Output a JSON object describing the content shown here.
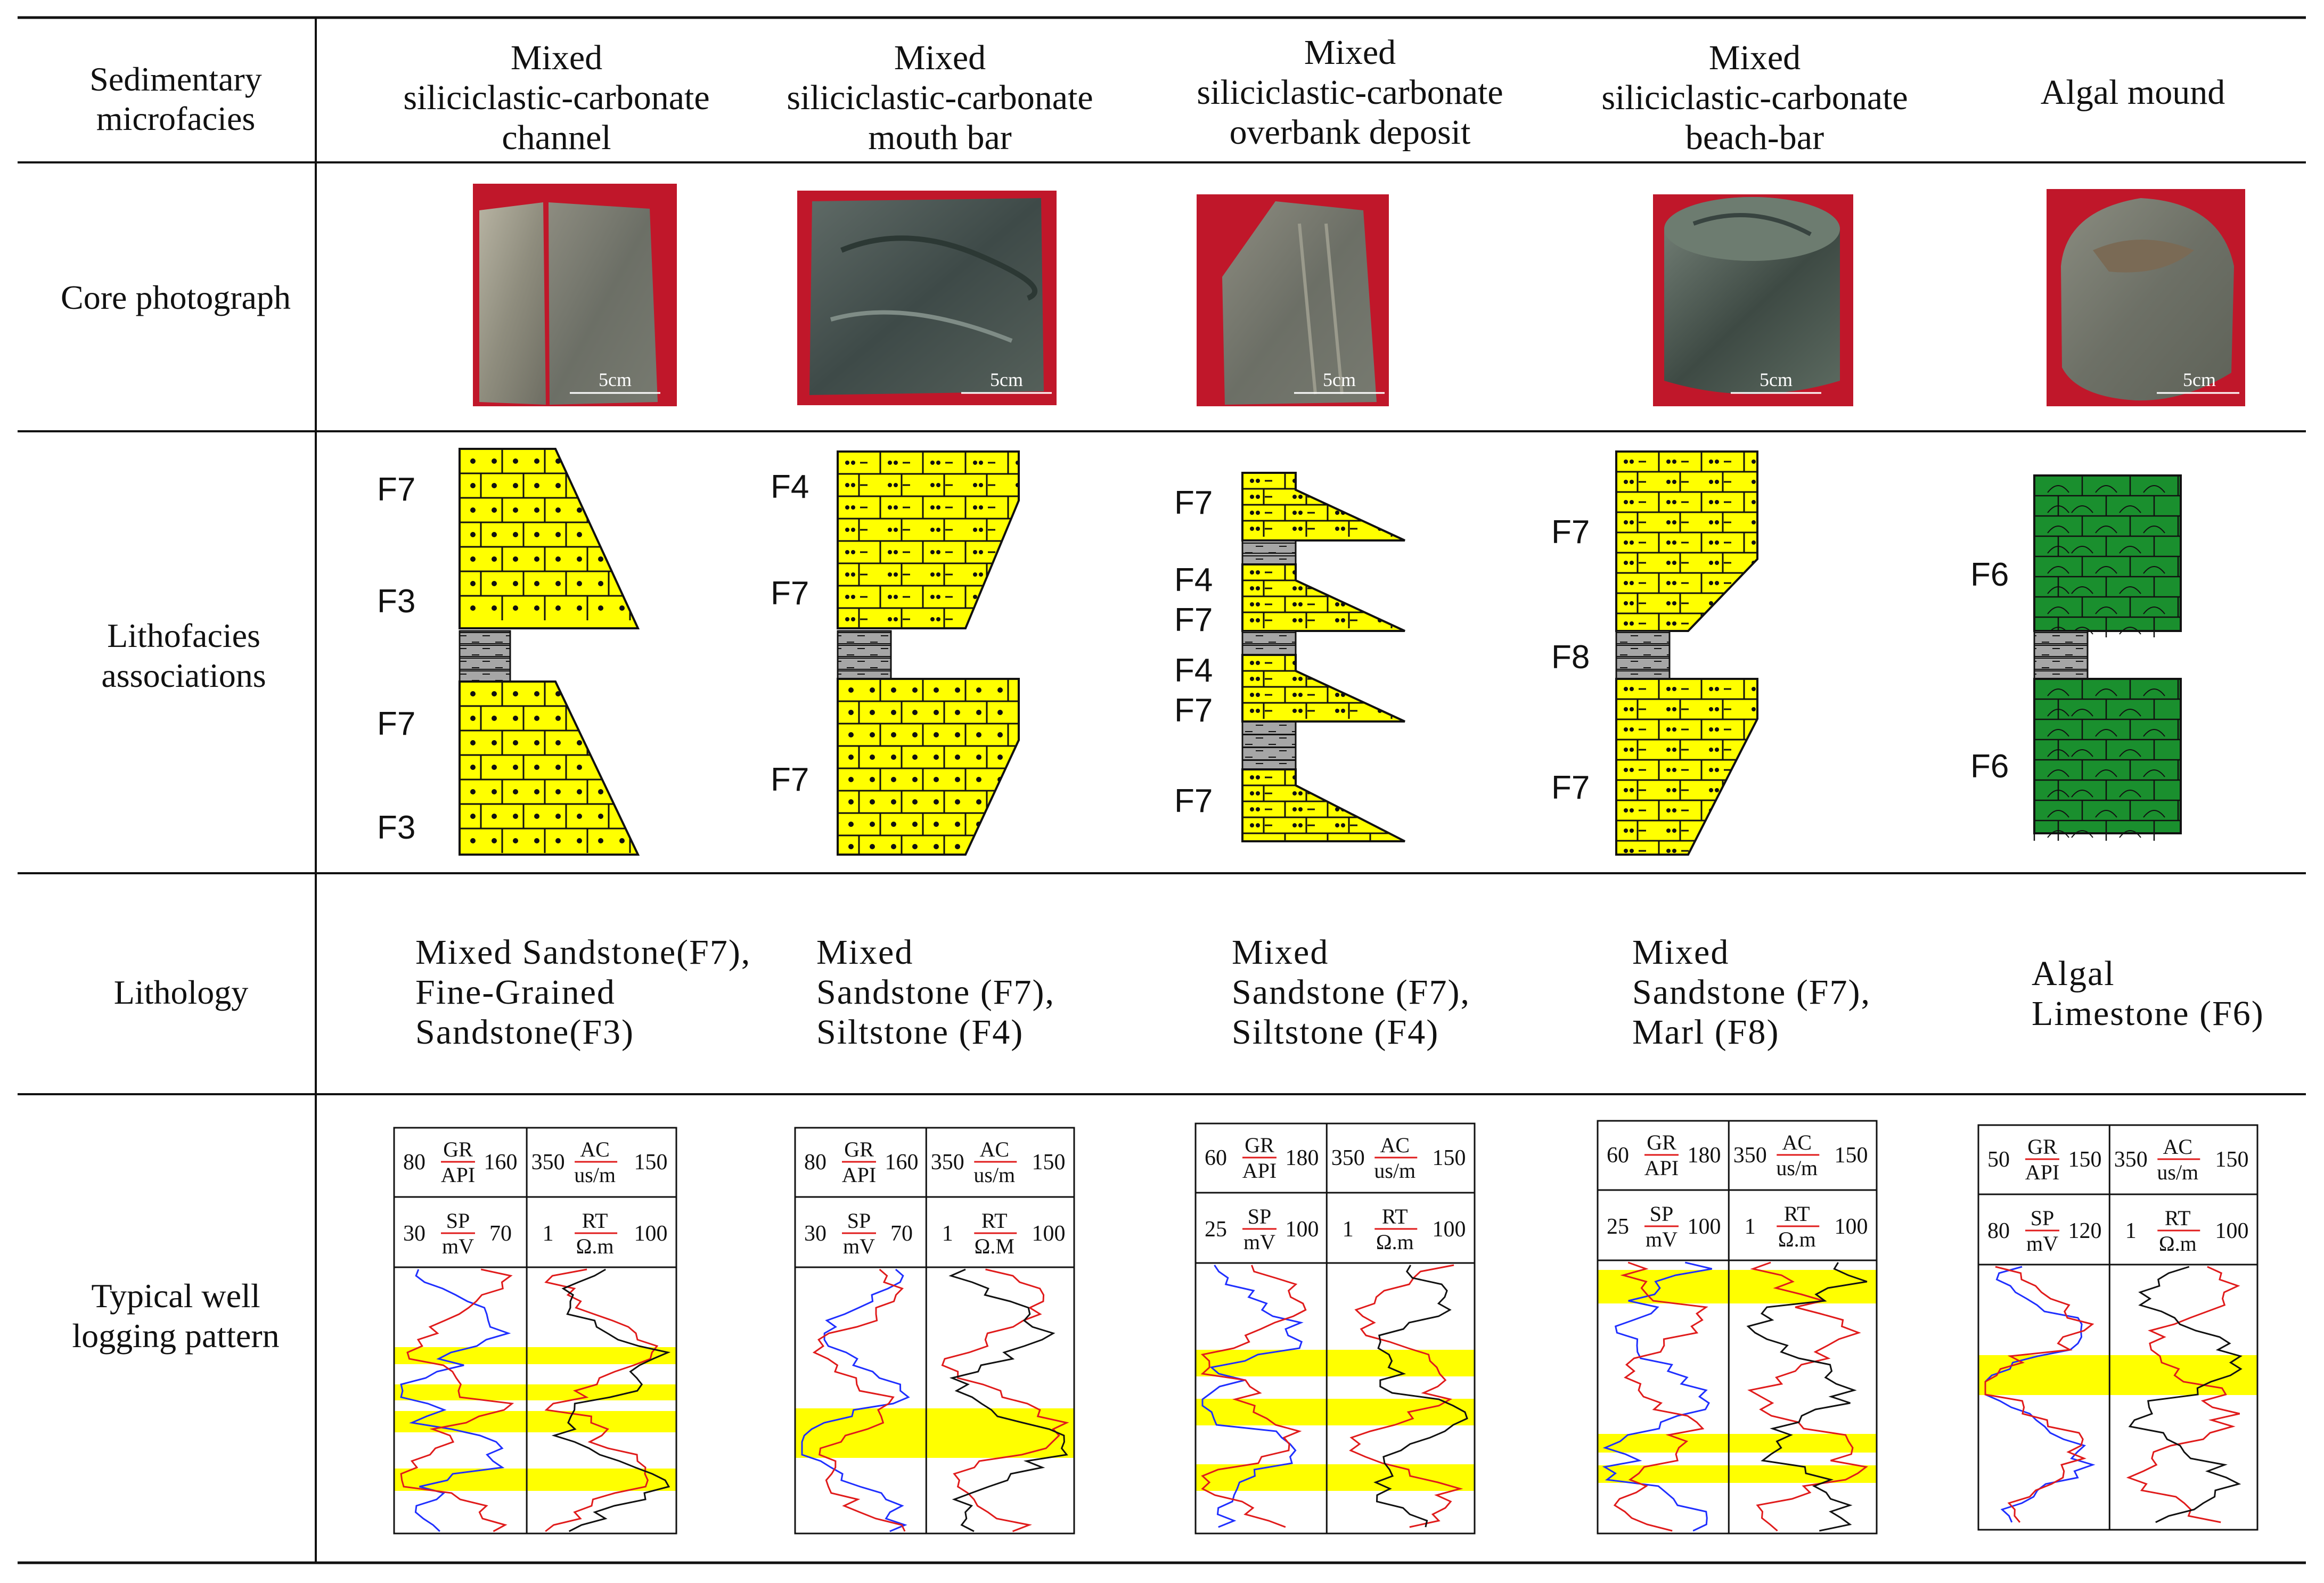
{
  "rows": {
    "header": [
      "Sedimentary",
      "microfacies"
    ],
    "core": "Core photograph",
    "litho": [
      "Lithofacies",
      "associations"
    ],
    "lithology": "Lithology",
    "logging": [
      "Typical well",
      "logging pattern"
    ]
  },
  "columns": [
    {
      "title": [
        "Mixed",
        "siliciclastic-carbonate",
        "channel"
      ],
      "lithology": [
        "Mixed Sandstone(F7),",
        "Fine-Grained",
        "Sandstone(F3)"
      ],
      "facies": [
        "F7",
        "F3",
        "F7",
        "F3"
      ],
      "scale_label": "5cm",
      "log_top": {
        "left": "80",
        "curve1": [
          "GR",
          "API"
        ],
        "mid": "160",
        "mid2": "350",
        "curve2": [
          "AC",
          "us/m"
        ],
        "right": "150"
      },
      "log_bottom": {
        "left": "30",
        "curve1": [
          "SP",
          "mV"
        ],
        "mid": "70",
        "mid2": "1",
        "curve2": [
          "RT",
          "Ω.m"
        ],
        "right": "100"
      }
    },
    {
      "title": [
        "Mixed",
        "siliciclastic-carbonate",
        "mouth bar"
      ],
      "lithology": [
        "Mixed",
        "Sandstone (F7),",
        "Siltstone (F4)"
      ],
      "facies": [
        "F4",
        "F7",
        "F7"
      ],
      "scale_label": "5cm",
      "log_top": {
        "left": "80",
        "curve1": [
          "GR",
          "API"
        ],
        "mid": "160",
        "mid2": "350",
        "curve2": [
          "AC",
          "us/m"
        ],
        "right": "150"
      },
      "log_bottom": {
        "left": "30",
        "curve1": [
          "SP",
          "mV"
        ],
        "mid": "70",
        "mid2": "1",
        "curve2": [
          "RT",
          "Ω.M"
        ],
        "right": "100"
      }
    },
    {
      "title": [
        "Mixed",
        "siliciclastic-carbonate",
        "overbank deposit"
      ],
      "lithology": [
        "Mixed",
        "Sandstone (F7),",
        "Siltstone (F4)"
      ],
      "facies": [
        "F7",
        "F4",
        "F7",
        "F4",
        "F7",
        "F7"
      ],
      "scale_label": "5cm",
      "log_top": {
        "left": "60",
        "curve1": [
          "GR",
          "API"
        ],
        "mid": "180",
        "mid2": "350",
        "curve2": [
          "AC",
          "us/m"
        ],
        "right": "150"
      },
      "log_bottom": {
        "left": "25",
        "curve1": [
          "SP",
          "mV"
        ],
        "mid": "100",
        "mid2": "1",
        "curve2": [
          "RT",
          "Ω.m"
        ],
        "right": "100"
      }
    },
    {
      "title": [
        "Mixed",
        "siliciclastic-carbonate",
        "beach-bar"
      ],
      "lithology": [
        "Mixed",
        "Sandstone (F7),",
        "Marl (F8)"
      ],
      "facies": [
        "F7",
        "F8",
        "F7"
      ],
      "scale_label": "5cm",
      "log_top": {
        "left": "60",
        "curve1": [
          "GR",
          "API"
        ],
        "mid": "180",
        "mid2": "350",
        "curve2": [
          "AC",
          "us/m"
        ],
        "right": "150"
      },
      "log_bottom": {
        "left": "25",
        "curve1": [
          "SP",
          "mV"
        ],
        "mid": "100",
        "mid2": "1",
        "curve2": [
          "RT",
          "Ω.m"
        ],
        "right": "100"
      }
    },
    {
      "title": [
        "Algal mound"
      ],
      "lithology": [
        "Algal",
        "Limestone (F6)"
      ],
      "facies": [
        "F6",
        "F6"
      ],
      "scale_label": "5cm",
      "log_top": {
        "left": "50",
        "curve1": [
          "GR",
          "API"
        ],
        "mid": "150",
        "mid2": "350",
        "curve2": [
          "AC",
          "us/m"
        ],
        "right": "150"
      },
      "log_bottom": {
        "left": "80",
        "curve1": [
          "SP",
          "mV"
        ],
        "mid": "120",
        "mid2": "1",
        "curve2": [
          "RT",
          "Ω.m"
        ],
        "right": "100"
      }
    }
  ],
  "colors": {
    "sand": "#ffff00",
    "algal": "#1a8f2e",
    "marl": "#a6a6a6",
    "core_bg": "#c0172a",
    "gr": "#1f2fff",
    "sp": "#e01b1b",
    "rt": "#111111",
    "ac": "#e01b1b",
    "highlight": "#ffff00"
  }
}
